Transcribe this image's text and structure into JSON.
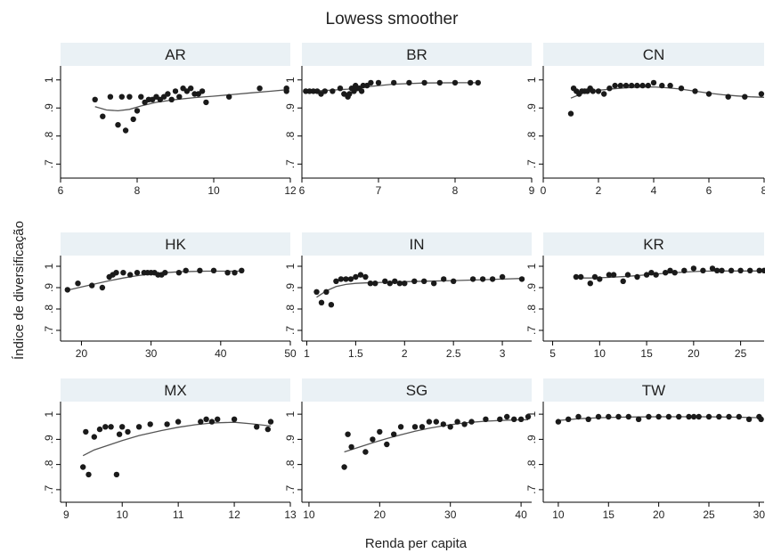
{
  "figure": {
    "title": "Lowess smoother",
    "ylabel": "Índice de diversificação",
    "xlabel": "Renda per capita"
  },
  "colors": {
    "strip": "#eaf1f5",
    "point": "#1a1a1a",
    "line": "#555555",
    "axis": "#000000"
  },
  "chart_data": [
    {
      "type": "scatter",
      "panel": "AR",
      "xlim": [
        6,
        12
      ],
      "ylim": [
        0.65,
        1.05
      ],
      "xticks": [
        6,
        8,
        10,
        12
      ],
      "yticks": [
        0.7,
        0.8,
        0.9,
        1
      ],
      "ytick_labels": [
        ".7",
        ".8",
        ".9",
        "1"
      ],
      "x": [
        6.9,
        7.1,
        7.3,
        7.5,
        7.6,
        7.7,
        7.8,
        7.9,
        8.0,
        8.1,
        8.2,
        8.3,
        8.4,
        8.5,
        8.6,
        8.7,
        8.8,
        8.9,
        9.0,
        9.1,
        9.2,
        9.3,
        9.4,
        9.5,
        9.6,
        9.7,
        9.8,
        10.4,
        11.2,
        11.9,
        11.9
      ],
      "y": [
        0.93,
        0.87,
        0.94,
        0.84,
        0.94,
        0.82,
        0.94,
        0.86,
        0.89,
        0.94,
        0.92,
        0.93,
        0.93,
        0.94,
        0.93,
        0.94,
        0.95,
        0.93,
        0.96,
        0.94,
        0.97,
        0.96,
        0.97,
        0.95,
        0.95,
        0.96,
        0.92,
        0.94,
        0.97,
        0.97,
        0.96
      ],
      "smooth_x": [
        6.9,
        7.2,
        7.5,
        7.8,
        8.1,
        8.5,
        9.0,
        9.5,
        10.0,
        10.5,
        11.0,
        11.5,
        11.9
      ],
      "smooth_y": [
        0.905,
        0.893,
        0.89,
        0.895,
        0.907,
        0.92,
        0.93,
        0.937,
        0.942,
        0.948,
        0.954,
        0.96,
        0.965
      ]
    },
    {
      "type": "scatter",
      "panel": "BR",
      "xlim": [
        6,
        9
      ],
      "ylim": [
        0.65,
        1.05
      ],
      "xticks": [
        6,
        7,
        8,
        9
      ],
      "yticks": [
        0.7,
        0.8,
        0.9,
        1
      ],
      "ytick_labels": [
        ".7",
        ".8",
        ".9",
        "1"
      ],
      "x": [
        6.05,
        6.1,
        6.15,
        6.2,
        6.25,
        6.3,
        6.4,
        6.5,
        6.55,
        6.6,
        6.62,
        6.65,
        6.68,
        6.7,
        6.72,
        6.75,
        6.78,
        6.8,
        6.85,
        6.9,
        7.0,
        7.2,
        7.4,
        7.6,
        7.8,
        8.0,
        8.2,
        8.3
      ],
      "y": [
        0.96,
        0.96,
        0.96,
        0.96,
        0.95,
        0.96,
        0.96,
        0.97,
        0.95,
        0.94,
        0.95,
        0.97,
        0.96,
        0.98,
        0.97,
        0.97,
        0.96,
        0.98,
        0.98,
        0.99,
        0.99,
        0.99,
        0.99,
        0.99,
        0.99,
        0.99,
        0.99,
        0.99
      ],
      "smooth_x": [
        6.05,
        6.3,
        6.6,
        6.9,
        7.2,
        7.6,
        8.0,
        8.3
      ],
      "smooth_y": [
        0.96,
        0.962,
        0.967,
        0.977,
        0.985,
        0.989,
        0.99,
        0.99
      ]
    },
    {
      "type": "scatter",
      "panel": "CN",
      "xlim": [
        0,
        8
      ],
      "ylim": [
        0.65,
        1.05
      ],
      "xticks": [
        0,
        2,
        4,
        6,
        8
      ],
      "yticks": [
        0.7,
        0.8,
        0.9,
        1
      ],
      "ytick_labels": [
        ".7",
        ".8",
        ".9",
        "1"
      ],
      "x": [
        1.0,
        1.1,
        1.2,
        1.3,
        1.4,
        1.5,
        1.6,
        1.7,
        1.8,
        2.0,
        2.2,
        2.4,
        2.6,
        2.8,
        3.0,
        3.2,
        3.4,
        3.6,
        3.8,
        4.0,
        4.3,
        4.6,
        5.0,
        5.5,
        6.0,
        6.7,
        7.3,
        7.9
      ],
      "y": [
        0.88,
        0.97,
        0.96,
        0.95,
        0.96,
        0.96,
        0.96,
        0.97,
        0.96,
        0.96,
        0.95,
        0.97,
        0.98,
        0.98,
        0.98,
        0.98,
        0.98,
        0.98,
        0.98,
        0.99,
        0.98,
        0.98,
        0.97,
        0.96,
        0.95,
        0.94,
        0.94,
        0.95
      ],
      "smooth_x": [
        1.0,
        1.5,
        2.0,
        2.5,
        3.0,
        3.5,
        4.0,
        4.5,
        5.0,
        5.5,
        6.0,
        6.5,
        7.0,
        7.5,
        8.0
      ],
      "smooth_y": [
        0.935,
        0.955,
        0.963,
        0.968,
        0.972,
        0.974,
        0.975,
        0.972,
        0.967,
        0.96,
        0.953,
        0.947,
        0.943,
        0.94,
        0.938
      ]
    },
    {
      "type": "scatter",
      "panel": "HK",
      "xlim": [
        17,
        50
      ],
      "ylim": [
        0.65,
        1.05
      ],
      "xticks": [
        20,
        30,
        40,
        50
      ],
      "yticks": [
        0.7,
        0.8,
        0.9,
        1
      ],
      "ytick_labels": [
        ".7",
        ".8",
        ".9",
        "1"
      ],
      "x": [
        18,
        19.5,
        21.5,
        23,
        24,
        24.5,
        25,
        26,
        27,
        28,
        29,
        29.5,
        30,
        30.5,
        31,
        31.5,
        32,
        34,
        35,
        37,
        39,
        41,
        42,
        43
      ],
      "y": [
        0.89,
        0.92,
        0.91,
        0.9,
        0.95,
        0.96,
        0.97,
        0.97,
        0.96,
        0.97,
        0.97,
        0.97,
        0.97,
        0.97,
        0.96,
        0.96,
        0.97,
        0.97,
        0.98,
        0.98,
        0.98,
        0.97,
        0.97,
        0.98
      ],
      "smooth_x": [
        18,
        20,
        22,
        24,
        26,
        28,
        30,
        32,
        34,
        36,
        38,
        40,
        42,
        43
      ],
      "smooth_y": [
        0.888,
        0.903,
        0.918,
        0.932,
        0.945,
        0.956,
        0.964,
        0.97,
        0.974,
        0.976,
        0.977,
        0.977,
        0.977,
        0.977
      ]
    },
    {
      "type": "scatter",
      "panel": "IN",
      "xlim": [
        0.95,
        3.3
      ],
      "ylim": [
        0.65,
        1.05
      ],
      "xticks": [
        1,
        1.5,
        2,
        2.5,
        3
      ],
      "yticks": [
        0.7,
        0.8,
        0.9,
        1
      ],
      "ytick_labels": [
        ".7",
        ".8",
        ".9",
        "1"
      ],
      "x": [
        1.1,
        1.15,
        1.2,
        1.25,
        1.3,
        1.35,
        1.4,
        1.45,
        1.5,
        1.55,
        1.6,
        1.65,
        1.7,
        1.8,
        1.85,
        1.9,
        1.95,
        2.0,
        2.1,
        2.2,
        2.3,
        2.4,
        2.5,
        2.7,
        2.8,
        2.9,
        3.0,
        3.2
      ],
      "y": [
        0.88,
        0.83,
        0.88,
        0.82,
        0.93,
        0.94,
        0.94,
        0.94,
        0.95,
        0.96,
        0.95,
        0.92,
        0.92,
        0.93,
        0.92,
        0.93,
        0.92,
        0.92,
        0.93,
        0.93,
        0.92,
        0.94,
        0.93,
        0.94,
        0.94,
        0.94,
        0.95,
        0.94
      ],
      "smooth_x": [
        1.1,
        1.2,
        1.3,
        1.4,
        1.5,
        1.6,
        1.8,
        2.0,
        2.2,
        2.5,
        2.8,
        3.0,
        3.2
      ],
      "smooth_y": [
        0.855,
        0.885,
        0.905,
        0.915,
        0.92,
        0.922,
        0.925,
        0.928,
        0.93,
        0.933,
        0.937,
        0.94,
        0.943
      ]
    },
    {
      "type": "scatter",
      "panel": "KR",
      "xlim": [
        4,
        27.5
      ],
      "ylim": [
        0.65,
        1.05
      ],
      "xticks": [
        5,
        10,
        15,
        20,
        25
      ],
      "yticks": [
        0.7,
        0.8,
        0.9,
        1
      ],
      "ytick_labels": [
        ".7",
        ".8",
        ".9",
        "1"
      ],
      "x": [
        7.5,
        8,
        9,
        9.5,
        10,
        11,
        11.5,
        12.5,
        13,
        14,
        15,
        15.5,
        16,
        17,
        17.5,
        18,
        19,
        20,
        21,
        22,
        22.5,
        23,
        24,
        25,
        26,
        27,
        27.5
      ],
      "y": [
        0.95,
        0.95,
        0.92,
        0.95,
        0.94,
        0.96,
        0.96,
        0.93,
        0.96,
        0.95,
        0.96,
        0.97,
        0.96,
        0.97,
        0.98,
        0.97,
        0.98,
        0.99,
        0.98,
        0.99,
        0.98,
        0.98,
        0.98,
        0.98,
        0.98,
        0.98,
        0.98
      ],
      "smooth_x": [
        7.5,
        9,
        11,
        13,
        15,
        17,
        19,
        21,
        23,
        25,
        27.5
      ],
      "smooth_y": [
        0.945,
        0.945,
        0.948,
        0.953,
        0.96,
        0.967,
        0.973,
        0.977,
        0.978,
        0.978,
        0.978
      ]
    },
    {
      "type": "scatter",
      "panel": "MX",
      "xlim": [
        8.9,
        13
      ],
      "ylim": [
        0.65,
        1.05
      ],
      "xticks": [
        9,
        10,
        11,
        12,
        13
      ],
      "yticks": [
        0.7,
        0.8,
        0.9,
        1
      ],
      "ytick_labels": [
        ".7",
        ".8",
        ".9",
        "1"
      ],
      "x": [
        9.3,
        9.35,
        9.4,
        9.5,
        9.6,
        9.7,
        9.8,
        9.9,
        9.95,
        10.0,
        10.1,
        10.3,
        10.5,
        10.8,
        11.0,
        11.4,
        11.5,
        11.6,
        11.7,
        12.0,
        12.4,
        12.6,
        12.65
      ],
      "y": [
        0.79,
        0.93,
        0.76,
        0.91,
        0.94,
        0.95,
        0.95,
        0.76,
        0.92,
        0.95,
        0.93,
        0.95,
        0.96,
        0.96,
        0.97,
        0.97,
        0.98,
        0.97,
        0.98,
        0.98,
        0.95,
        0.94,
        0.97
      ],
      "smooth_x": [
        9.3,
        9.5,
        9.8,
        10.0,
        10.3,
        10.7,
        11.0,
        11.3,
        11.6,
        12.0,
        12.3,
        12.65
      ],
      "smooth_y": [
        0.835,
        0.858,
        0.88,
        0.895,
        0.915,
        0.935,
        0.948,
        0.958,
        0.965,
        0.968,
        0.962,
        0.953
      ]
    },
    {
      "type": "scatter",
      "panel": "SG",
      "xlim": [
        9,
        41.5
      ],
      "ylim": [
        0.65,
        1.05
      ],
      "xticks": [
        10,
        20,
        30,
        40
      ],
      "yticks": [
        0.7,
        0.8,
        0.9,
        1
      ],
      "ytick_labels": [
        ".7",
        ".8",
        ".9",
        "1"
      ],
      "x": [
        15,
        15.5,
        16,
        18,
        19,
        20,
        21,
        22,
        23,
        25,
        26,
        27,
        28,
        29,
        30,
        31,
        32,
        33,
        35,
        37,
        38,
        39,
        40,
        41
      ],
      "y": [
        0.79,
        0.92,
        0.87,
        0.85,
        0.9,
        0.93,
        0.88,
        0.92,
        0.95,
        0.95,
        0.95,
        0.97,
        0.97,
        0.96,
        0.95,
        0.97,
        0.96,
        0.97,
        0.98,
        0.98,
        0.99,
        0.98,
        0.98,
        0.99
      ],
      "smooth_x": [
        15,
        17,
        19,
        21,
        23,
        25,
        27,
        29,
        31,
        33,
        35,
        37,
        39,
        41
      ],
      "smooth_y": [
        0.85,
        0.868,
        0.886,
        0.903,
        0.918,
        0.932,
        0.944,
        0.954,
        0.962,
        0.968,
        0.972,
        0.975,
        0.977,
        0.978
      ]
    },
    {
      "type": "scatter",
      "panel": "TW",
      "xlim": [
        8.5,
        30.5
      ],
      "ylim": [
        0.65,
        1.05
      ],
      "xticks": [
        10,
        15,
        20,
        25,
        30
      ],
      "yticks": [
        0.7,
        0.8,
        0.9,
        1
      ],
      "ytick_labels": [
        ".7",
        ".8",
        ".9",
        "1"
      ],
      "x": [
        10,
        11,
        12,
        13,
        14,
        15,
        16,
        17,
        18,
        19,
        20,
        21,
        22,
        23,
        23.5,
        24,
        25,
        26,
        27,
        28,
        29,
        30,
        30.2
      ],
      "y": [
        0.97,
        0.98,
        0.99,
        0.98,
        0.99,
        0.99,
        0.99,
        0.99,
        0.98,
        0.99,
        0.99,
        0.99,
        0.99,
        0.99,
        0.99,
        0.99,
        0.99,
        0.99,
        0.99,
        0.99,
        0.98,
        0.99,
        0.98
      ],
      "smooth_x": [
        10,
        12,
        14,
        16,
        18,
        20,
        22,
        24,
        26,
        28,
        30.2
      ],
      "smooth_y": [
        0.975,
        0.982,
        0.986,
        0.988,
        0.989,
        0.99,
        0.99,
        0.99,
        0.989,
        0.988,
        0.986
      ]
    }
  ]
}
